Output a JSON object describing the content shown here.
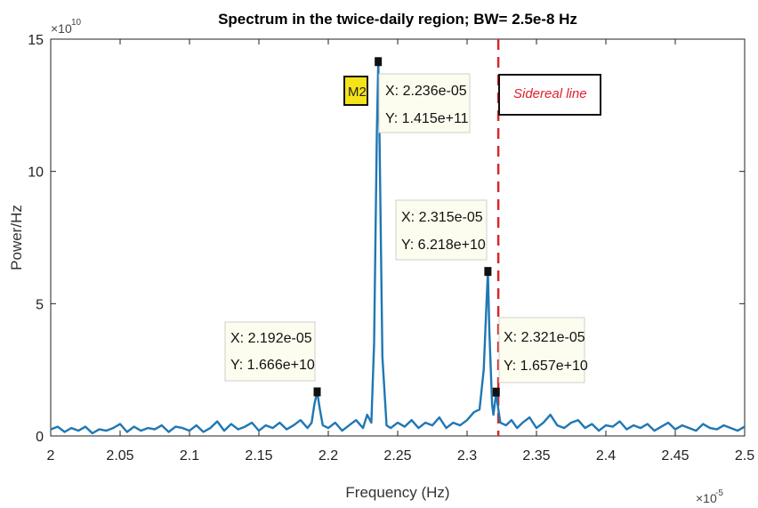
{
  "chart_data": {
    "type": "line",
    "title": "Spectrum in the twice-daily region; BW= 2.5e-8 Hz",
    "xlabel": "Frequency (Hz)",
    "ylabel": "Power/Hz",
    "x_exponent_base": "×10",
    "x_exponent_power": "-5",
    "y_exponent_base": "×10",
    "y_exponent_power": "10",
    "xlim": [
      2.0,
      2.5
    ],
    "ylim": [
      0,
      15
    ],
    "x_ticks": [
      "2",
      "2.05",
      "2.1",
      "2.15",
      "2.2",
      "2.25",
      "2.3",
      "2.35",
      "2.4",
      "2.45",
      "2.5"
    ],
    "y_ticks": [
      "0",
      "5",
      "10",
      "15"
    ],
    "series": [
      {
        "color": "#1f77b4",
        "x": [
          2.0,
          2.005,
          2.01,
          2.015,
          2.02,
          2.025,
          2.03,
          2.035,
          2.04,
          2.045,
          2.05,
          2.055,
          2.06,
          2.065,
          2.07,
          2.075,
          2.08,
          2.085,
          2.09,
          2.095,
          2.1,
          2.105,
          2.11,
          2.115,
          2.12,
          2.125,
          2.13,
          2.135,
          2.14,
          2.145,
          2.15,
          2.155,
          2.16,
          2.165,
          2.17,
          2.175,
          2.18,
          2.185,
          2.188,
          2.19,
          2.192,
          2.194,
          2.196,
          2.2,
          2.205,
          2.21,
          2.215,
          2.22,
          2.225,
          2.228,
          2.231,
          2.233,
          2.235,
          2.236,
          2.237,
          2.239,
          2.242,
          2.245,
          2.25,
          2.255,
          2.26,
          2.265,
          2.27,
          2.275,
          2.28,
          2.285,
          2.29,
          2.295,
          2.3,
          2.305,
          2.309,
          2.312,
          2.314,
          2.315,
          2.316,
          2.318,
          2.319,
          2.321,
          2.322,
          2.324,
          2.328,
          2.332,
          2.336,
          2.34,
          2.345,
          2.35,
          2.355,
          2.36,
          2.365,
          2.37,
          2.375,
          2.38,
          2.385,
          2.39,
          2.395,
          2.4,
          2.405,
          2.41,
          2.415,
          2.42,
          2.425,
          2.43,
          2.435,
          2.44,
          2.445,
          2.45,
          2.455,
          2.46,
          2.465,
          2.47,
          2.475,
          2.48,
          2.485,
          2.49,
          2.495,
          2.5
        ],
        "values": [
          0.25,
          0.35,
          0.15,
          0.3,
          0.2,
          0.35,
          0.1,
          0.25,
          0.2,
          0.3,
          0.45,
          0.15,
          0.35,
          0.2,
          0.3,
          0.25,
          0.4,
          0.15,
          0.35,
          0.3,
          0.2,
          0.4,
          0.15,
          0.3,
          0.55,
          0.2,
          0.45,
          0.25,
          0.35,
          0.5,
          0.2,
          0.4,
          0.3,
          0.5,
          0.25,
          0.4,
          0.6,
          0.3,
          0.5,
          1.2,
          1.666,
          1.0,
          0.4,
          0.3,
          0.5,
          0.2,
          0.4,
          0.6,
          0.3,
          0.8,
          0.5,
          3.5,
          11.5,
          14.15,
          11.0,
          3.0,
          0.4,
          0.3,
          0.5,
          0.35,
          0.6,
          0.3,
          0.5,
          0.4,
          0.7,
          0.3,
          0.5,
          0.4,
          0.6,
          0.9,
          1.0,
          2.5,
          5.0,
          6.218,
          4.0,
          1.2,
          0.8,
          1.657,
          1.2,
          0.5,
          0.4,
          0.6,
          0.3,
          0.5,
          0.7,
          0.3,
          0.5,
          0.8,
          0.4,
          0.3,
          0.5,
          0.6,
          0.3,
          0.45,
          0.2,
          0.4,
          0.35,
          0.55,
          0.25,
          0.4,
          0.3,
          0.45,
          0.2,
          0.35,
          0.5,
          0.25,
          0.4,
          0.3,
          0.2,
          0.45,
          0.3,
          0.25,
          0.4,
          0.3,
          0.2,
          0.35
        ]
      }
    ],
    "markers": [
      {
        "x": 2.192,
        "y": 1.666
      },
      {
        "x": 2.236,
        "y": 14.15
      },
      {
        "x": 2.315,
        "y": 6.218
      },
      {
        "x": 2.321,
        "y": 1.657
      }
    ],
    "datatips": [
      {
        "x_text": "X: 2.192e-05",
        "y_text": "Y: 1.666e+10"
      },
      {
        "x_text": "X: 2.236e-05",
        "y_text": "Y: 1.415e+11"
      },
      {
        "x_text": "X: 2.315e-05",
        "y_text": "Y: 6.218e+10"
      },
      {
        "x_text": "X: 2.321e-05",
        "y_text": "Y: 1.657e+10"
      }
    ],
    "annotations": {
      "m2_label": "M2",
      "sidereal_line_x": 2.3225,
      "sidereal_color": "#d62728",
      "legend_text": "Sidereal line",
      "legend_placement": "top-right"
    },
    "grid": false
  }
}
